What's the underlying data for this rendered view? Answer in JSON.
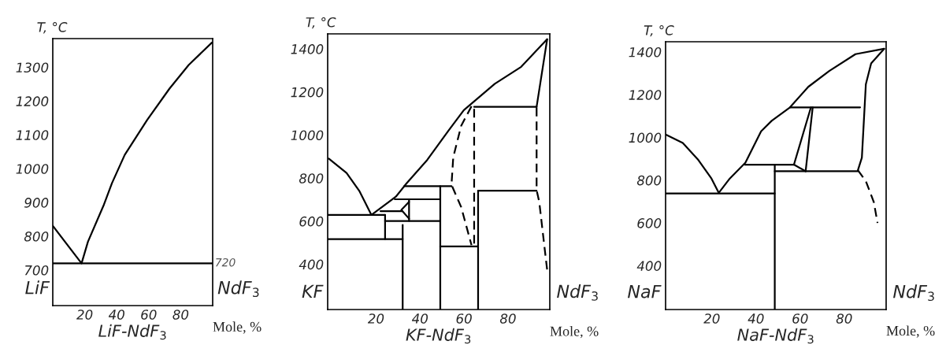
{
  "chart_data": [
    {
      "type": "line",
      "xlabel": "LiF-NdF$_{3}$",
      "ylabel": "T, °C",
      "xlim": [
        0,
        100
      ],
      "ylim": [
        595,
        1385
      ],
      "xticks": [
        20,
        40,
        60,
        80
      ],
      "yticks": [
        700,
        800,
        900,
        1000,
        1100,
        1200,
        1300
      ],
      "grid": false,
      "legend": false,
      "annotations": [
        "LiF",
        "NdF$_{3}$",
        "Mole, %",
        {
          "text": "720",
          "x": 100,
          "y": 720
        }
      ],
      "series": [
        {
          "color": "#000000",
          "line_style": "solid",
          "x": [
            0,
            18,
            22,
            32,
            37,
            45,
            59,
            73,
            85,
            99.5
          ],
          "values": [
            831,
            720,
            784,
            894,
            957,
            1041,
            1144,
            1237,
            1307,
            1373
          ]
        },
        {
          "color": "#000000",
          "line_style": "solid",
          "x": [
            0,
            100
          ],
          "values": [
            720,
            720
          ]
        }
      ]
    },
    {
      "type": "line",
      "xlabel": "KF-NdF$_{3}$",
      "ylabel": "T, °C",
      "xlim": [
        -2,
        99
      ],
      "ylim": [
        190,
        1470
      ],
      "xticks": [
        20,
        40,
        60,
        80
      ],
      "yticks": [
        400,
        600,
        800,
        1000,
        1200,
        1400
      ],
      "grid": false,
      "legend": false,
      "annotations": [
        "KF",
        "NdF$_{3}$",
        "Mole, %"
      ],
      "series": [
        {
          "color": "#000000",
          "line_style": "solid",
          "x": [
            -1.5,
            6.6,
            12.5,
            17.9,
            29,
            33.8,
            43.3,
            52.8,
            59.9,
            74,
            86,
            97.8
          ],
          "values": [
            891,
            824,
            739,
            629,
            714,
            775,
            885,
            1019,
            1116,
            1238,
            1317,
            1445
          ]
        },
        {
          "color": "#000000",
          "line_style": "solid",
          "x": [
            97.8,
            93
          ],
          "values": [
            1445,
            1131
          ]
        },
        {
          "color": "#000000",
          "line_style": "dashed",
          "x": [
            63.4,
            58.7,
            55.1,
            54.3,
            58.7,
            63.4
          ],
          "values": [
            1134,
            1043,
            897,
            769,
            666,
            489
          ]
        },
        {
          "color": "#000000",
          "line_style": "dashed",
          "x": [
            64.6,
            64.6
          ],
          "values": [
            1122,
            483
          ]
        },
        {
          "color": "#000000",
          "line_style": "dashed",
          "x": [
            93,
            93,
            94.2,
            97.8
          ],
          "values": [
            1128,
            745,
            690,
            373
          ]
        },
        {
          "color": "#000000",
          "line_style": "solid",
          "x": [
            -2,
            24.1
          ],
          "values": [
            629,
            629
          ]
        },
        {
          "color": "#000000",
          "line_style": "solid",
          "x": [
            24.1,
            24.1
          ],
          "values": [
            629,
            517
          ]
        },
        {
          "color": "#000000",
          "line_style": "solid",
          "x": [
            -2,
            32.1
          ],
          "values": [
            517,
            517
          ]
        },
        {
          "color": "#000000",
          "line_style": "solid",
          "x": [
            32.1,
            32.1
          ],
          "values": [
            583,
            190
          ]
        },
        {
          "color": "#000000",
          "line_style": "solid",
          "x": [
            22,
            32
          ],
          "values": [
            647,
            647
          ]
        },
        {
          "color": "#000000",
          "line_style": "solid",
          "x": [
            28.5,
            49.2
          ],
          "values": [
            702,
            702
          ]
        },
        {
          "color": "#000000",
          "line_style": "solid",
          "x": [
            32.8,
            54.3
          ],
          "values": [
            763,
            763
          ]
        },
        {
          "color": "#000000",
          "line_style": "solid",
          "x": [
            24.1,
            49.2
          ],
          "values": [
            601,
            601
          ]
        },
        {
          "color": "#000000",
          "line_style": "solid",
          "x": [
            49.2,
            49.2
          ],
          "values": [
            763,
            190
          ]
        },
        {
          "color": "#000000",
          "line_style": "solid",
          "x": [
            35,
            35
          ],
          "values": [
            702,
            601
          ]
        },
        {
          "color": "#000000",
          "line_style": "solid",
          "x": [
            35,
            31.5,
            35
          ],
          "values": [
            690,
            653,
            612
          ]
        },
        {
          "color": "#000000",
          "line_style": "solid",
          "x": [
            49.2,
            66.4
          ],
          "values": [
            483,
            483
          ]
        },
        {
          "color": "#000000",
          "line_style": "solid",
          "x": [
            66.4,
            66.4
          ],
          "values": [
            742,
            190
          ]
        },
        {
          "color": "#000000",
          "line_style": "solid",
          "x": [
            66.4,
            93
          ],
          "values": [
            742,
            742
          ]
        },
        {
          "color": "#000000",
          "line_style": "solid",
          "x": [
            64.6,
            93
          ],
          "values": [
            1131,
            1131
          ]
        }
      ]
    },
    {
      "type": "line",
      "xlabel": "NaF-NdF$_{3}$",
      "ylabel": "T, °C",
      "xlim": [
        -1,
        99
      ],
      "ylim": [
        195,
        1448
      ],
      "xticks": [
        20,
        40,
        60,
        80
      ],
      "yticks": [
        400,
        600,
        800,
        1000,
        1200,
        1400
      ],
      "grid": false,
      "legend": false,
      "annotations": [
        "NaF",
        "NdF$_{3}$",
        "Mole, %"
      ],
      "series": [
        {
          "color": "#000000",
          "line_style": "solid",
          "x": [
            -1,
            6.8,
            13.9,
            19.8,
            23.1,
            28.1,
            35.2,
            42.3,
            47.1,
            55.4,
            63.7,
            73.2,
            85.1,
            98.1
          ],
          "values": [
            1014,
            974,
            894,
            808,
            741,
            808,
            882,
            1029,
            1078,
            1141,
            1237,
            1311,
            1390,
            1415
          ]
        },
        {
          "color": "#000000",
          "line_style": "solid",
          "x": [
            98.1,
            92.2,
            89.8,
            88,
            86.2
          ],
          "values": [
            1415,
            1347,
            1249,
            906,
            847
          ]
        },
        {
          "color": "#000000",
          "line_style": "dashed",
          "x": [
            86.2,
            89.8,
            93.4,
            95.1
          ],
          "values": [
            847,
            796,
            698,
            600
          ]
        },
        {
          "color": "#000000",
          "line_style": "solid",
          "x": [
            -1,
            48.5
          ],
          "values": [
            738,
            738
          ]
        },
        {
          "color": "#000000",
          "line_style": "solid",
          "x": [
            34.9,
            57.2
          ],
          "values": [
            873,
            873
          ]
        },
        {
          "color": "#000000",
          "line_style": "solid",
          "x": [
            48.5,
            86.2
          ],
          "values": [
            842,
            842
          ]
        },
        {
          "color": "#000000",
          "line_style": "solid",
          "x": [
            55.4,
            87.2
          ],
          "values": [
            1141,
            1141
          ]
        },
        {
          "color": "#000000",
          "line_style": "solid",
          "x": [
            48.5,
            48.5
          ],
          "values": [
            873,
            195
          ]
        },
        {
          "color": "#000000",
          "line_style": "solid",
          "x": [
            57.2,
            64.9
          ],
          "values": [
            873,
            1141
          ]
        },
        {
          "color": "#000000",
          "line_style": "solid",
          "x": [
            62.5,
            65.7
          ],
          "values": [
            842,
            1141
          ]
        },
        {
          "color": "#000000",
          "line_style": "solid",
          "x": [
            57.2,
            62.5
          ],
          "values": [
            873,
            842
          ]
        }
      ]
    }
  ]
}
